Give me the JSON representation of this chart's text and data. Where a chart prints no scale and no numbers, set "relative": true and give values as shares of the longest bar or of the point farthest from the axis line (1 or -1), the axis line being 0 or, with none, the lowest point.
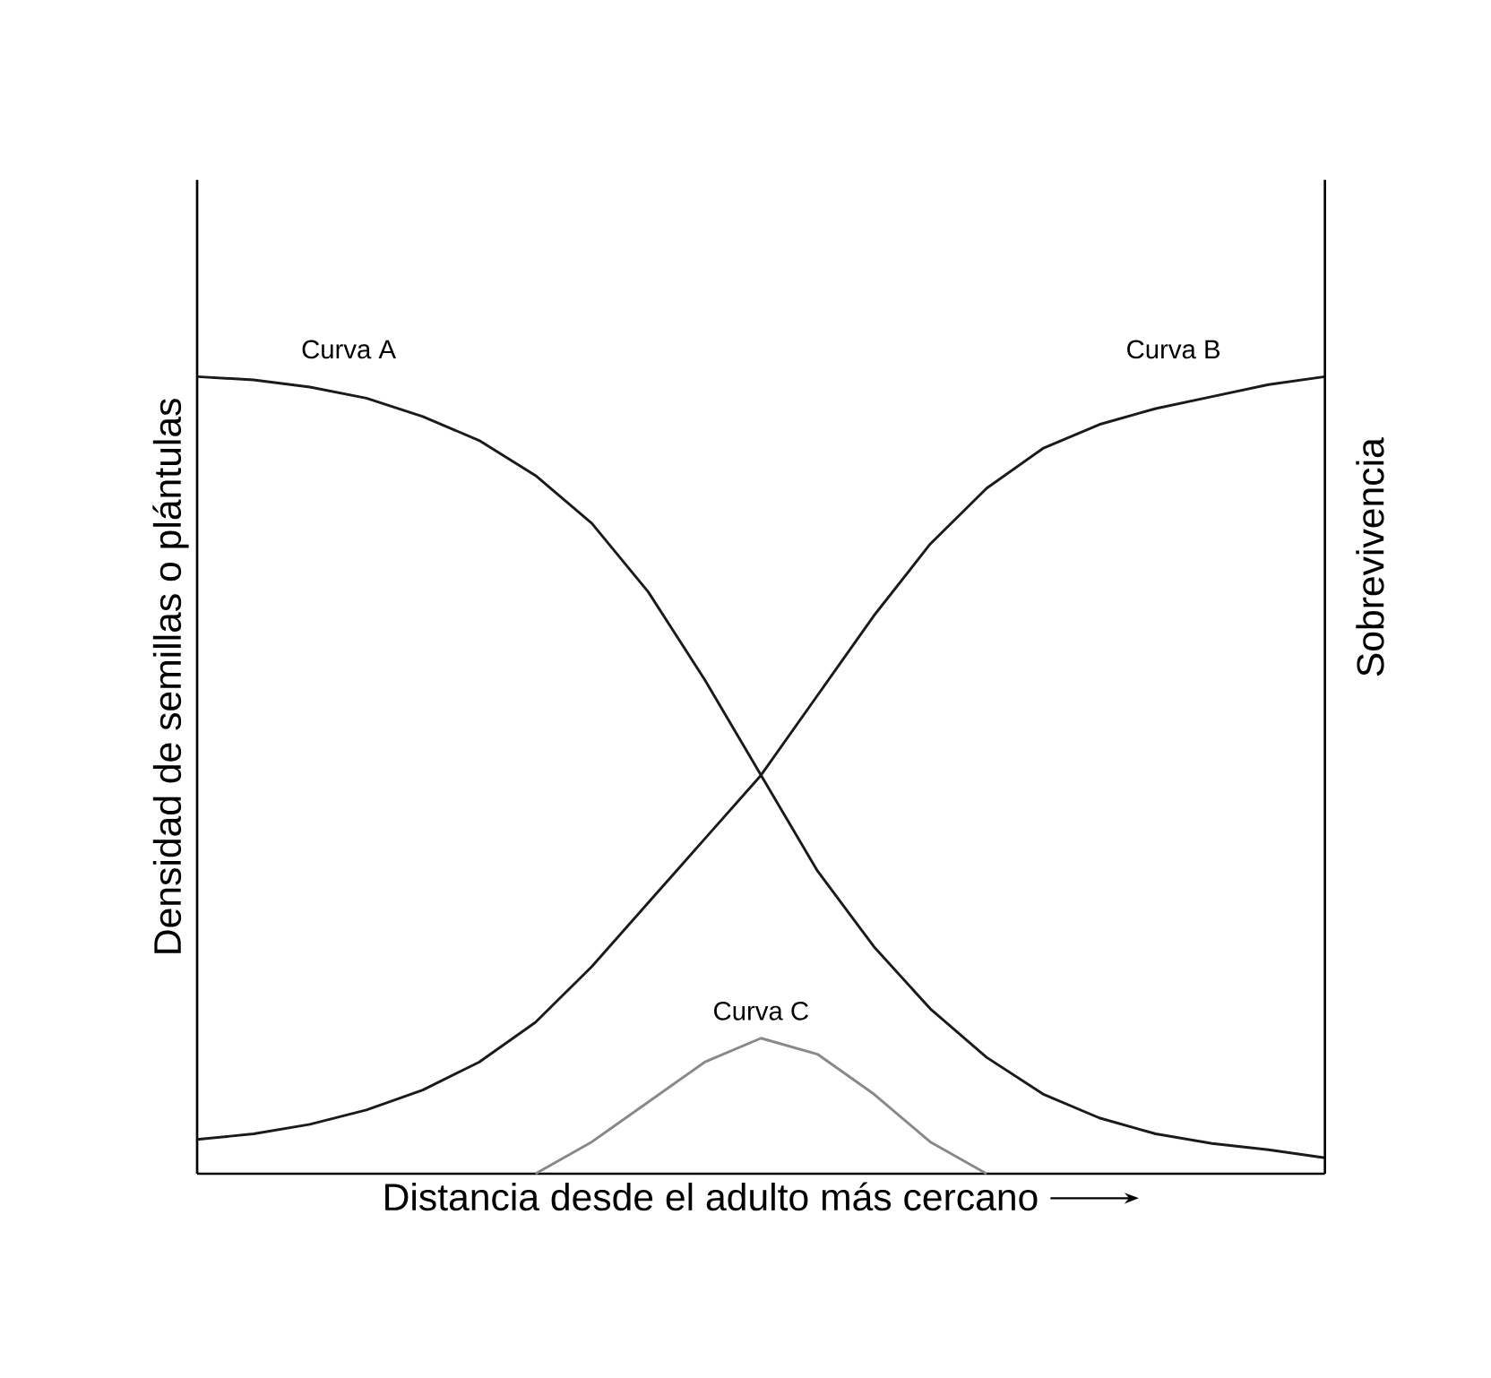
{
  "chart_data": {
    "type": "line",
    "relative": true,
    "tick_labels": false,
    "xlabel": "Distancia desde el adulto más cercano",
    "ylabel": "Densidad de semillas o plántulas",
    "y2label": "Sobrevivencia",
    "categories": [
      null,
      null,
      null,
      null,
      null,
      null,
      null,
      null,
      null,
      null,
      null,
      null,
      null,
      null,
      null,
      null,
      null,
      null,
      null,
      null,
      null
    ],
    "series": [
      {
        "name": "Curva A",
        "color": "#1a1a1a",
        "values": [
          1.0,
          0.996,
          0.987,
          0.973,
          0.95,
          0.92,
          0.876,
          0.816,
          0.73,
          0.62,
          0.5,
          0.38,
          0.285,
          0.207,
          0.146,
          0.1,
          0.07,
          0.05,
          0.038,
          0.03,
          0.02
        ]
      },
      {
        "name": "Curva B",
        "color": "#1a1a1a",
        "values": [
          0.043,
          0.05,
          0.062,
          0.08,
          0.105,
          0.14,
          0.19,
          0.26,
          0.34,
          0.42,
          0.5,
          0.6,
          0.7,
          0.79,
          0.86,
          0.91,
          0.94,
          0.96,
          0.975,
          0.99,
          1.0
        ]
      },
      {
        "name": "Curva C",
        "color": "#888888",
        "values": [
          null,
          null,
          null,
          null,
          null,
          null,
          0.0,
          0.04,
          0.09,
          0.14,
          0.17,
          0.15,
          0.1,
          0.04,
          0.0,
          null,
          null,
          null,
          null,
          null,
          null
        ]
      }
    ]
  }
}
